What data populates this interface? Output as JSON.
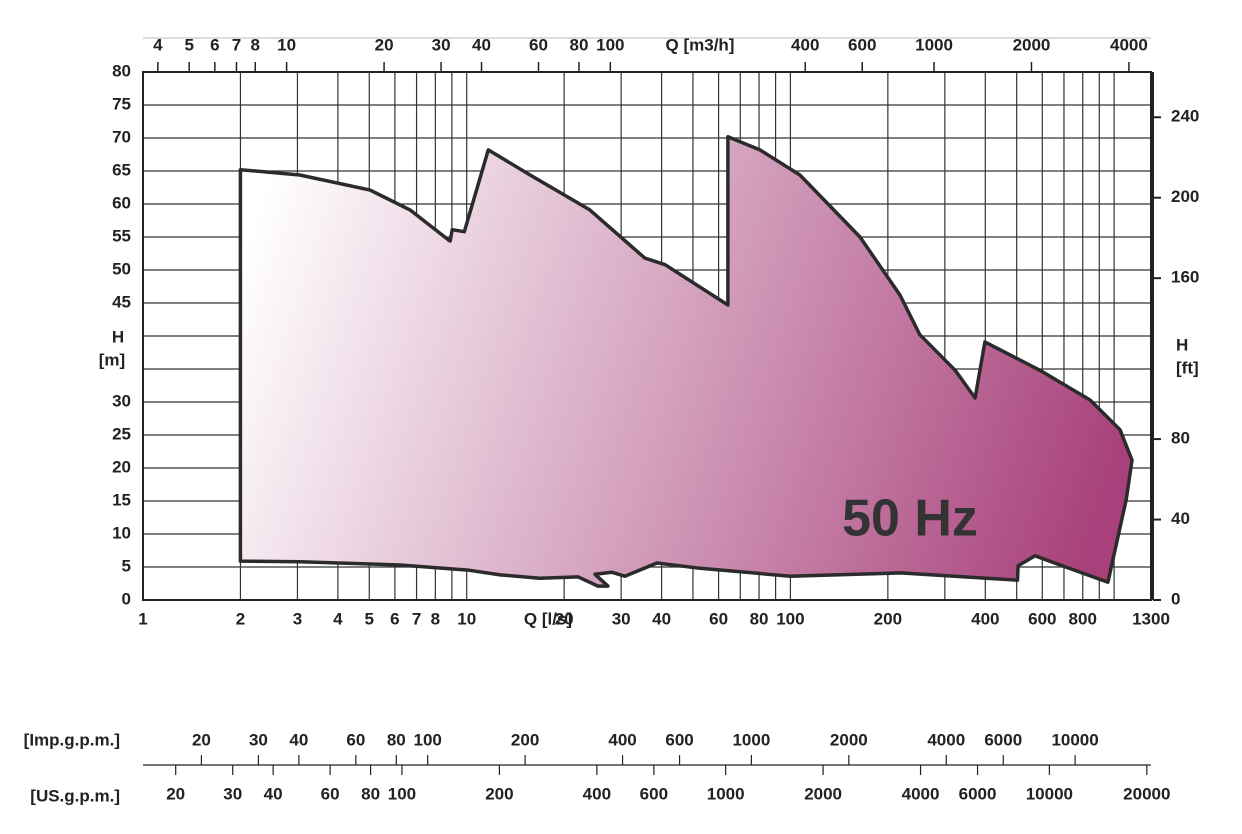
{
  "chart_data": {
    "type": "area",
    "annotation": "50 Hz",
    "xlabel": "Q [l/s]",
    "ylabel": [
      "H",
      "[m]"
    ],
    "y2label": [
      "H",
      "[ft]"
    ],
    "xscale": "log",
    "grid": true,
    "color": "#a8417b",
    "edgecolor": "#2b2b2b",
    "x": [
      2,
      3.05,
      5.03,
      6.68,
      8.81,
      8.89,
      9.02,
      9.83,
      11.66,
      15.7,
      24.0,
      35.5,
      41.0,
      64.1,
      64.1,
      80.5,
      107,
      164,
      218,
      251,
      323,
      372,
      399,
      590,
      843,
      1043,
      1136,
      1090,
      957,
      681,
      570,
      505,
      503,
      218,
      100,
      52.6,
      38.7,
      30.8,
      28.1,
      24.9,
      27.3,
      25.4,
      22.1,
      16.8,
      12.7,
      10.2,
      6.22,
      3.05,
      2
    ],
    "values": [
      65.2,
      64.4,
      62.1,
      59.1,
      54.5,
      54.4,
      56.1,
      55.8,
      68.2,
      64.4,
      59.1,
      51.8,
      50.8,
      44.7,
      70.2,
      68.2,
      64.4,
      55.0,
      46.2,
      40.2,
      34.8,
      30.6,
      39.1,
      34.8,
      30.3,
      25.8,
      21.2,
      15.2,
      2.7,
      5.3,
      6.7,
      5.2,
      3.0,
      4.1,
      3.6,
      4.8,
      5.6,
      3.6,
      4.2,
      3.9,
      2.1,
      2.1,
      3.5,
      3.3,
      3.8,
      4.5,
      5.3,
      5.8,
      5.9
    ],
    "xlim": [
      1,
      1300
    ],
    "xticks": [
      1,
      2,
      3,
      4,
      5,
      6,
      7,
      8,
      10,
      20,
      30,
      40,
      60,
      80,
      100,
      200,
      400,
      600,
      800,
      1300
    ],
    "xgrid_minor": [
      9,
      50,
      70,
      90,
      300,
      500,
      700,
      900,
      1000
    ],
    "ylim": [
      0,
      80
    ],
    "yticks": [
      0,
      5,
      10,
      15,
      20,
      25,
      30,
      45,
      50,
      55,
      60,
      65,
      70,
      75,
      80
    ],
    "ygrid_minor": [
      35,
      40
    ],
    "y2lim": [
      0,
      262.5
    ],
    "y2ticks": [
      0,
      40,
      80,
      160,
      200,
      240
    ],
    "top_axis": {
      "label": "Q [m3/h]",
      "lim": [
        3.6,
        4680
      ],
      "ticks": [
        4,
        5,
        6,
        7,
        8,
        10,
        20,
        30,
        40,
        60,
        80,
        100,
        400,
        600,
        1000,
        2000,
        4000
      ]
    },
    "imp_axis": {
      "label": "[Imp.g.p.m.]",
      "lim": [
        13.2,
        17160
      ],
      "ticks": [
        20,
        30,
        40,
        60,
        80,
        100,
        200,
        400,
        600,
        1000,
        2000,
        4000,
        6000,
        10000
      ]
    },
    "us_axis": {
      "label": "[US.g.p.m.]",
      "lim": [
        15.85,
        20605
      ],
      "ticks": [
        20,
        30,
        40,
        60,
        80,
        100,
        200,
        400,
        600,
        1000,
        2000,
        4000,
        6000,
        10000,
        20000
      ]
    }
  }
}
